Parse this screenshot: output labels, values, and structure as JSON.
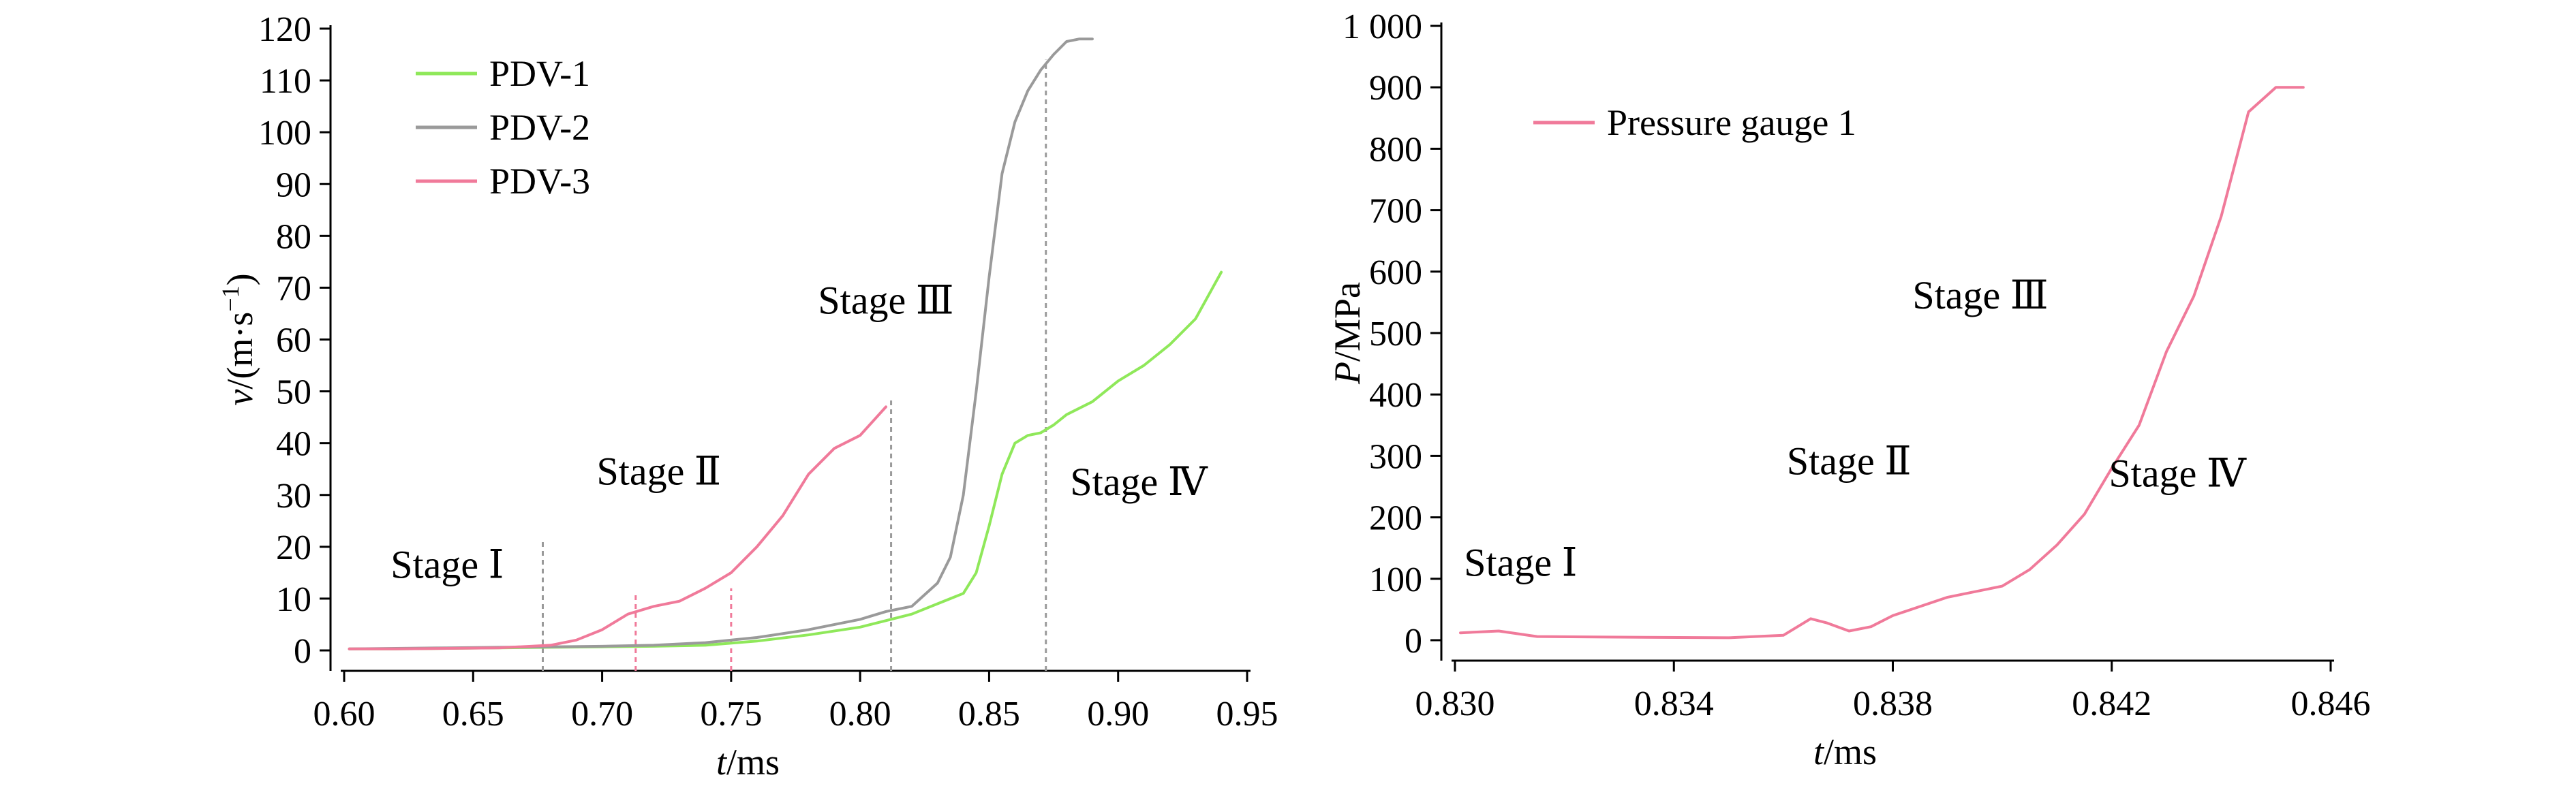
{
  "chart_data": [
    {
      "type": "line",
      "xlabel_italic": "t",
      "xlabel_unit": "/ms",
      "ylabel_italic": "v",
      "ylabel_unit": "/(m·s",
      "ylabel_sup": "−1",
      "ylabel_close": ")",
      "xlim": [
        0.6,
        0.95
      ],
      "ylim": [
        0,
        120
      ],
      "xticks": [
        0.6,
        0.65,
        0.7,
        0.75,
        0.8,
        0.85,
        0.9,
        0.95
      ],
      "xtick_labels": [
        "0.60",
        "0.65",
        "0.70",
        "0.75",
        "0.80",
        "0.85",
        "0.90",
        "0.95"
      ],
      "yticks": [
        0,
        10,
        20,
        30,
        40,
        50,
        60,
        70,
        80,
        90,
        100,
        110,
        120
      ],
      "ytick_labels": [
        "0",
        "10",
        "20",
        "30",
        "40",
        "50",
        "60",
        "70",
        "80",
        "90",
        "100",
        "110",
        "120"
      ],
      "legend_position": "top-left",
      "series": [
        {
          "name": "PDV-1",
          "color": "#8fe85a",
          "x": [
            0.602,
            0.62,
            0.64,
            0.66,
            0.68,
            0.7,
            0.72,
            0.74,
            0.76,
            0.78,
            0.8,
            0.82,
            0.83,
            0.84,
            0.845,
            0.85,
            0.855,
            0.86,
            0.865,
            0.87,
            0.875,
            0.88,
            0.89,
            0.9,
            0.91,
            0.92,
            0.93,
            0.94
          ],
          "y": [
            0.3,
            0.3,
            0.4,
            0.5,
            0.6,
            0.7,
            0.8,
            1.0,
            1.8,
            3.0,
            4.5,
            7.0,
            9.0,
            11.0,
            15.0,
            24.0,
            34.0,
            40.0,
            41.5,
            42.0,
            43.5,
            45.5,
            48.0,
            52.0,
            55.0,
            59.0,
            64.0,
            73.0
          ]
        },
        {
          "name": "PDV-2",
          "color": "#9a9a9a",
          "x": [
            0.602,
            0.62,
            0.64,
            0.66,
            0.68,
            0.7,
            0.72,
            0.74,
            0.76,
            0.78,
            0.8,
            0.81,
            0.82,
            0.83,
            0.835,
            0.84,
            0.845,
            0.85,
            0.855,
            0.86,
            0.865,
            0.87,
            0.875,
            0.88,
            0.885,
            0.89
          ],
          "y": [
            0.3,
            0.4,
            0.5,
            0.6,
            0.7,
            0.8,
            1.0,
            1.5,
            2.5,
            4.0,
            6.0,
            7.5,
            8.5,
            13.0,
            18.0,
            30.0,
            50.0,
            72.0,
            92.0,
            102.0,
            108.0,
            112.0,
            115.0,
            117.5,
            118.0,
            118.0
          ]
        },
        {
          "name": "PDV-3",
          "color": "#f07a9a",
          "x": [
            0.602,
            0.62,
            0.64,
            0.66,
            0.68,
            0.69,
            0.7,
            0.71,
            0.72,
            0.73,
            0.74,
            0.75,
            0.76,
            0.77,
            0.78,
            0.79,
            0.8,
            0.81
          ],
          "y": [
            0.3,
            0.3,
            0.4,
            0.5,
            1.0,
            2.0,
            4.0,
            7.0,
            8.5,
            9.5,
            12.0,
            15.0,
            20.0,
            26.0,
            34.0,
            39.0,
            41.5,
            47.0
          ]
        }
      ],
      "stage_labels": [
        {
          "text": "Stage Ⅰ",
          "x": 0.64,
          "y": 14
        },
        {
          "text": "Stage Ⅱ",
          "x": 0.722,
          "y": 32
        },
        {
          "text": "Stage Ⅲ",
          "x": 0.81,
          "y": 65
        },
        {
          "text": "Stage Ⅳ",
          "x": 0.908,
          "y": 30
        }
      ],
      "markers": [
        {
          "x": 0.677,
          "y_top": 21,
          "color": "#9a9a9a"
        },
        {
          "x": 0.713,
          "y_top": 11,
          "color": "#f07a9a"
        },
        {
          "x": 0.75,
          "y_top": 12,
          "color": "#f07a9a"
        },
        {
          "x": 0.812,
          "y_top": 49,
          "color": "#9a9a9a"
        },
        {
          "x": 0.872,
          "y_top": 114,
          "color": "#9a9a9a"
        }
      ]
    },
    {
      "type": "line",
      "xlabel_italic": "t",
      "xlabel_unit": "/ms",
      "ylabel_italic": "P",
      "ylabel_unit": "/MPa",
      "xlim": [
        0.83,
        0.846
      ],
      "ylim": [
        0,
        1000
      ],
      "xticks": [
        0.83,
        0.834,
        0.838,
        0.842,
        0.846
      ],
      "xtick_labels": [
        "0.830",
        "0.834",
        "0.838",
        "0.842",
        "0.846"
      ],
      "yticks": [
        0,
        100,
        200,
        300,
        400,
        500,
        600,
        700,
        800,
        900,
        1000
      ],
      "ytick_labels": [
        "0",
        "100",
        "200",
        "300",
        "400",
        "500",
        "600",
        "700",
        "800",
        "900",
        "1 000"
      ],
      "legend_position": "top-left",
      "series": [
        {
          "name": "Pressure gauge 1",
          "color": "#f07a9a",
          "x": [
            0.8301,
            0.8308,
            0.8315,
            0.833,
            0.835,
            0.836,
            0.8365,
            0.8368,
            0.8372,
            0.8376,
            0.838,
            0.8385,
            0.839,
            0.84,
            0.8405,
            0.841,
            0.8415,
            0.842,
            0.8425,
            0.843,
            0.8435,
            0.844,
            0.8445,
            0.845,
            0.8455
          ],
          "y": [
            12,
            15,
            6,
            5,
            4,
            8,
            35,
            28,
            15,
            22,
            40,
            55,
            70,
            88,
            115,
            155,
            205,
            280,
            350,
            470,
            560,
            690,
            860,
            900,
            900
          ]
        }
      ],
      "stage_labels": [
        {
          "text": "Stage Ⅰ",
          "x": 0.8312,
          "y": 105
        },
        {
          "text": "Stage Ⅱ",
          "x": 0.8372,
          "y": 270
        },
        {
          "text": "Stage Ⅲ",
          "x": 0.8396,
          "y": 540
        },
        {
          "text": "Stage Ⅳ",
          "x": 0.8432,
          "y": 250
        }
      ]
    }
  ]
}
